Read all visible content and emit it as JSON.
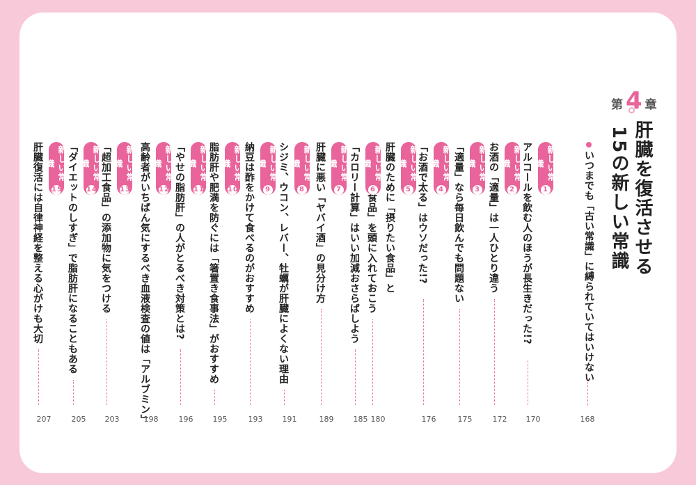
{
  "chapter": {
    "prefix": "第",
    "number": "4",
    "suffix": "章",
    "title_line1": "肝臓を復活させる",
    "title_line2": "15の新しい常識"
  },
  "intro": {
    "text": "いつまでも「古い常識」に縛られていてはいけない",
    "page": "168"
  },
  "entries": [
    {
      "badge": "新しい常識",
      "num": "1",
      "title": "アルコールを飲む人のほうが長生きだった!?",
      "page": "170"
    },
    {
      "badge": "新しい常識",
      "num": "2",
      "title": "お酒の「適量」は一人ひとり違う",
      "page": "172"
    },
    {
      "badge": "新しい常識",
      "num": "3",
      "title": "「適量」なら毎日飲んでも問題ない",
      "page": "175"
    },
    {
      "badge": "新しい常識",
      "num": "4",
      "title": "「お酒で太る」はウソだった!?",
      "page": "176"
    },
    {
      "badge": "新しい常識",
      "num": "5",
      "title": "肝臓のために「摂りたい食品」と",
      "title2": "「控えたい食品」を頭に入れておこう",
      "page": "180"
    },
    {
      "badge": "新しい常識",
      "num": "6",
      "title": "「カロリー計算」はいい加減おさらばしよう",
      "page": "185"
    },
    {
      "badge": "新しい常識",
      "num": "7",
      "title": "肝臓に悪い「ヤバイ酒」の見分け方",
      "page": "189"
    },
    {
      "badge": "新しい常識",
      "num": "8",
      "title": "シジミ、ウコン、レバー、牡蠣が肝臓によくない理由",
      "page": "191"
    },
    {
      "badge": "新しい常識",
      "num": "9",
      "title": "納豆は酢をかけて食べるのがおすすめ",
      "page": "193"
    },
    {
      "badge": "新しい常識",
      "num": "10",
      "title": "脂肪肝や肥満を防ぐには「箸置き食事法」がおすすめ",
      "page": "195"
    },
    {
      "badge": "新しい常識",
      "num": "11",
      "title": "「やせの脂肪肝」の人がとるべき対策とは?",
      "page": "196"
    },
    {
      "badge": "新しい常識",
      "num": "12",
      "title": "高齢者がいちばん気にするべき血液検査の値は「アルブミン」",
      "page": "198"
    },
    {
      "badge": "新しい常識",
      "num": "13",
      "title": "「超加工食品」の添加物に気をつける",
      "page": "203"
    },
    {
      "badge": "新しい常識",
      "num": "14",
      "title": "「ダイエットのしすぎ」で脂肪肝になることもある",
      "page": "205"
    },
    {
      "badge": "新しい常識",
      "num": "15",
      "title": "肝臓復活には自律神経を整える心がけも大切",
      "page": "207"
    }
  ],
  "colors": {
    "accent": "#e8649a",
    "frame": "#f8c9d9",
    "text": "#222222"
  }
}
